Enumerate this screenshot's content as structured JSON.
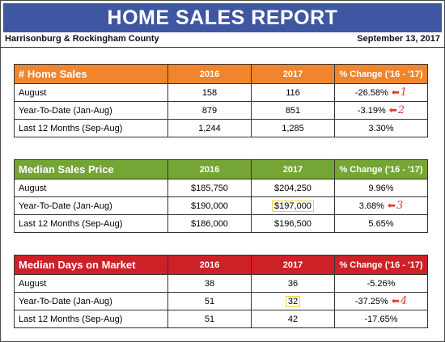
{
  "header": {
    "title": "HOME SALES REPORT",
    "region": "Harrisonburg & Rockingham County",
    "date": "September 13, 2017"
  },
  "tables": [
    {
      "title": "# Home Sales",
      "columns": [
        "2016",
        "2017",
        "% Change ('16 - '17)"
      ],
      "rows": [
        {
          "label": "August",
          "values": [
            "158",
            "116",
            "-26.58%"
          ],
          "marker": "1"
        },
        {
          "label": "Year-To-Date (Jan-Aug)",
          "values": [
            "879",
            "851",
            "-3.19%"
          ],
          "marker": "2"
        },
        {
          "label": "Last 12 Months (Sep-Aug)",
          "values": [
            "1,244",
            "1,285",
            "3.30%"
          ],
          "marker": ""
        }
      ]
    },
    {
      "title": "Median Sales Price",
      "columns": [
        "2016",
        "2017",
        "% Change ('16 - '17)"
      ],
      "rows": [
        {
          "label": "August",
          "values": [
            "$185,750",
            "$204,250",
            "9.96%"
          ],
          "marker": ""
        },
        {
          "label": "Year-To-Date (Jan-Aug)",
          "values": [
            "$190,000",
            "$197,000",
            "3.68%"
          ],
          "marker": "3"
        },
        {
          "label": "Last 12 Months (Sep-Aug)",
          "values": [
            "$186,000",
            "$196,500",
            "5.65%"
          ],
          "marker": ""
        }
      ]
    },
    {
      "title": "Median Days on Market",
      "columns": [
        "2016",
        "2017",
        "% Change ('16 - '17)"
      ],
      "rows": [
        {
          "label": "August",
          "values": [
            "38",
            "36",
            "-5.26%"
          ],
          "marker": ""
        },
        {
          "label": "Year-To-Date (Jan-Aug)",
          "values": [
            "51",
            "32",
            "-37.25%"
          ],
          "marker": "4"
        },
        {
          "label": "Last 12 Months (Sep-Aug)",
          "values": [
            "51",
            "42",
            "-17.65%"
          ],
          "marker": ""
        }
      ]
    }
  ],
  "colors": {
    "banner": "#3f57a3",
    "home_sales_header": "#f1852d",
    "price_header": "#74a535",
    "days_header": "#ce2027",
    "marker": "#e03a2b",
    "highlight_box": "#f2d23b"
  },
  "icons": {
    "marker_arrow": "left-arrow-icon"
  }
}
